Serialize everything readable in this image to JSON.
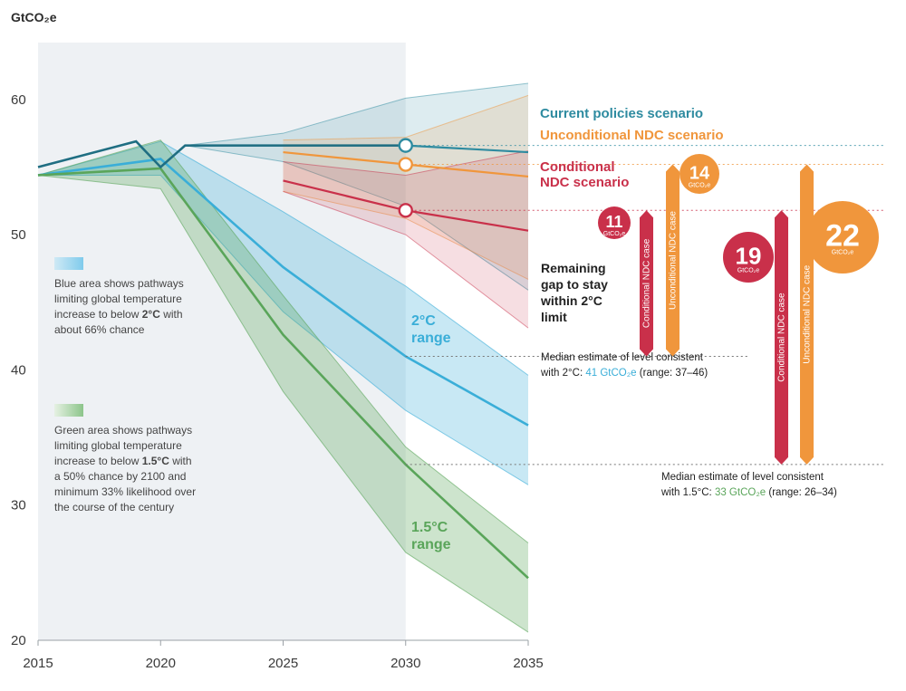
{
  "chart_data": {
    "type": "area",
    "ylabel": "GtCO₂e",
    "xlim": [
      2015,
      2035
    ],
    "ylim": [
      20,
      62
    ],
    "x_ticks": [
      "2015",
      "2020",
      "2025",
      "2030",
      "2035"
    ],
    "y_ticks": [
      "20",
      "30",
      "40",
      "50",
      "60"
    ],
    "historical": {
      "x": [
        2015,
        2019,
        2020,
        2021,
        2030
      ],
      "y": [
        55.0,
        56.9,
        55.0,
        56.6,
        56.6
      ]
    },
    "scenarios": [
      {
        "name": "Current policies scenario",
        "color": "#2e8ba0",
        "x": [
          2021,
          2025,
          2030,
          2035
        ],
        "y": [
          56.6,
          56.6,
          56.6,
          56.1
        ],
        "upper": [
          56.6,
          57.5,
          60.1,
          61.2
        ],
        "lower": [
          56.6,
          55.4,
          52.1,
          45.9
        ],
        "marker_2030": 56.6
      },
      {
        "name": "Unconditional NDC scenario",
        "color": "#f0963c",
        "x": [
          2025,
          2030,
          2035
        ],
        "y": [
          56.1,
          55.2,
          54.3
        ],
        "upper": [
          57.0,
          57.2,
          60.3
        ],
        "lower": [
          53.2,
          51.2,
          46.7
        ],
        "marker_2030": 55.2
      },
      {
        "name": "Conditional NDC scenario",
        "color": "#c9304a",
        "x": [
          2025,
          2030,
          2035
        ],
        "y": [
          54.0,
          51.8,
          50.3
        ],
        "upper": [
          55.4,
          54.4,
          56.2
        ],
        "lower": [
          53.2,
          50.0,
          43.1
        ],
        "marker_2030": 51.8
      }
    ],
    "pathways": [
      {
        "name": "2°C range",
        "color": "#3aaed8",
        "x": [
          2015,
          2020,
          2025,
          2030,
          2035
        ],
        "y": [
          54.4,
          55.6,
          47.6,
          41.0,
          35.9
        ],
        "upper": [
          54.4,
          56.9,
          51.7,
          46.2,
          39.6
        ],
        "lower": [
          54.4,
          54.4,
          44.3,
          37.0,
          31.5
        ]
      },
      {
        "name": "1.5°C range",
        "color": "#5aa55a",
        "x": [
          2015,
          2020,
          2025,
          2030,
          2035
        ],
        "y": [
          54.4,
          54.9,
          42.6,
          33.0,
          24.6
        ],
        "upper": [
          54.4,
          57.0,
          45.5,
          34.3,
          27.2
        ],
        "lower": [
          54.4,
          53.4,
          38.4,
          26.5,
          20.6
        ]
      }
    ],
    "labels": {
      "range_2c": [
        "2°C",
        "range"
      ],
      "range_15c": [
        "1.5°C",
        "range"
      ],
      "current": "Current policies scenario",
      "unconditional": "Unconditional NDC scenario",
      "conditional": [
        "Conditional",
        "NDC scenario"
      ],
      "gap": [
        "Remaining",
        "gap to stay",
        "within 2°C",
        "limit"
      ]
    },
    "notes": {
      "blue": [
        "Blue area shows pathways",
        "limiting global temperature",
        "increase to below ",
        "2°C",
        " with",
        "about 66% chance"
      ],
      "green": [
        "Green area shows pathways",
        "limiting global temperature",
        "increase to below ",
        "1.5°C",
        " with",
        "a 50% chance by 2100 and",
        "minimum 33% likelihood over",
        "the course of the century"
      ]
    },
    "median_2c": {
      "line1": "Median estimate of level consistent",
      "line2a": "with 2°C: ",
      "value": "41 GtCO₂e",
      "line2b": " (range: 37–46)",
      "level": 41
    },
    "median_15c": {
      "line1": "Median estimate of level consistent",
      "line2a": "with 1.5°C: ",
      "value": "33 GtCO₂e",
      "line2b": " (range: 26–34)",
      "level": 33
    },
    "gap_bars": [
      {
        "label": "Conditional NDC case",
        "color": "#c9304a",
        "top": 51.8,
        "bottom": 41,
        "value": "11",
        "unit": "GtCO₂e"
      },
      {
        "label": "Unconditional NDC case",
        "color": "#f0963c",
        "top": 55.2,
        "bottom": 41,
        "value": "14",
        "unit": "GtCO₂e"
      },
      {
        "label": "Conditional NDC case",
        "color": "#c9304a",
        "top": 51.8,
        "bottom": 33,
        "value": "19",
        "unit": "GtCO₂e"
      },
      {
        "label": "Unconditional NDC case",
        "color": "#f0963c",
        "top": 55.2,
        "bottom": 33,
        "value": "22",
        "unit": "GtCO₂e"
      }
    ]
  }
}
